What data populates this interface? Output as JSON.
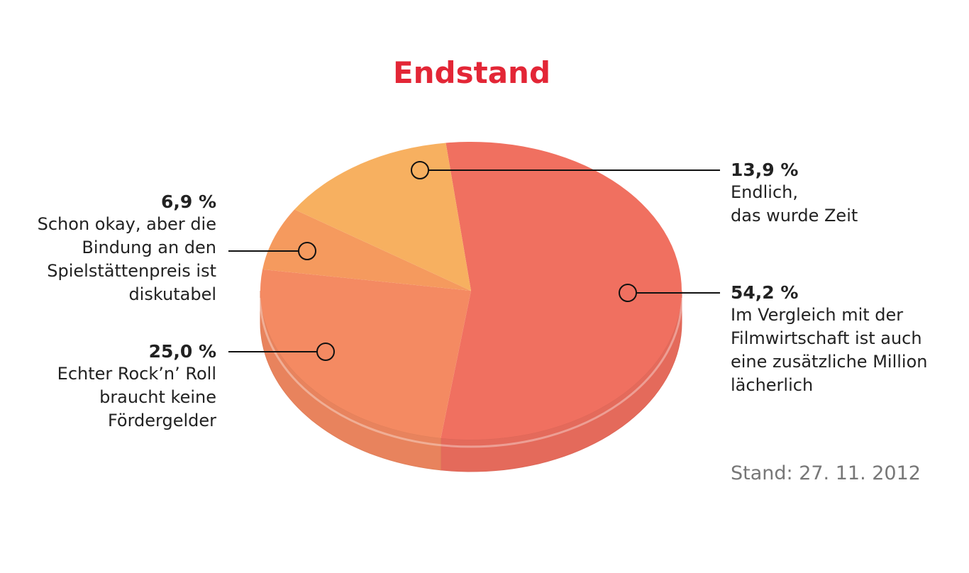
{
  "chart_data": {
    "type": "pie",
    "title": "Endstand",
    "categories": [
      "Im Vergleich mit der\nFilmwirtschaft ist auch\neine zusätzliche Million\nlächerlich",
      "Echter Rock’n’ Roll\nbraucht keine\nFördergelder",
      "Schon okay, aber die\nBindung an den\nSpielstättenpreis ist\ndiskutabel",
      "Endlich,\ndas wurde Zeit"
    ],
    "values": [
      54.2,
      25.0,
      6.9,
      13.9
    ],
    "value_labels": [
      "54,2 %",
      "25,0 %",
      "6,9 %",
      "13,9 %"
    ],
    "colors": [
      "#f07060",
      "#f48a62",
      "#f59a5e",
      "#f7b060"
    ],
    "note": "Stand: 27. 11. 2012"
  }
}
